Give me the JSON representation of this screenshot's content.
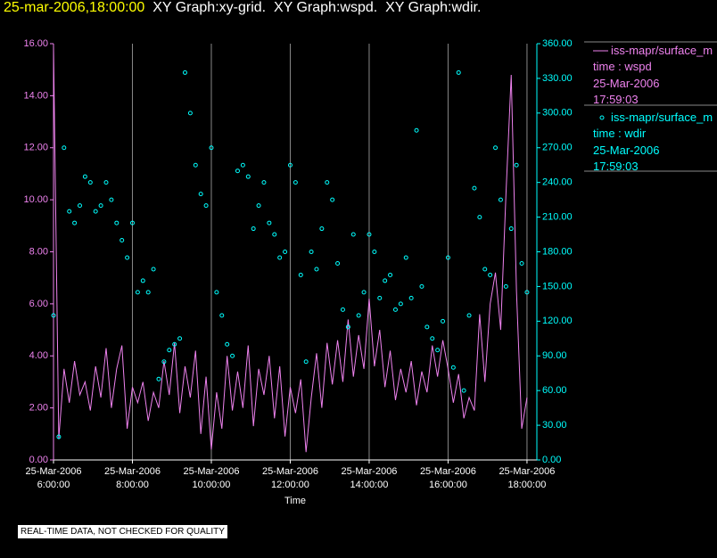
{
  "chart_data": {
    "type": "line",
    "title": "25-mar-2006,18:00:00",
    "subtitle": "XY Graph:xy-grid.  XY Graph:wspd.  XY Graph:wdir.",
    "x_label": "Time",
    "note": "REAL-TIME DATA, NOT CHECKED FOR QUALITY",
    "grid": "x",
    "xlim": [
      "2006-03-25T06:00:00",
      "2006-03-25T18:15:00"
    ],
    "xticks": [
      {
        "value": "2006-03-25T06:00:00",
        "label": "25-Mar-2006\n6:00:00"
      },
      {
        "value": "2006-03-25T08:00:00",
        "label": "25-Mar-2006\n8:00:00"
      },
      {
        "value": "2006-03-25T10:00:00",
        "label": "25-Mar-2006\n10:00:00"
      },
      {
        "value": "2006-03-25T12:00:00",
        "label": "25-Mar-2006\n12:00:00"
      },
      {
        "value": "2006-03-25T14:00:00",
        "label": "25-Mar-2006\n14:00:00"
      },
      {
        "value": "2006-03-25T16:00:00",
        "label": "25-Mar-2006\n16:00:00"
      },
      {
        "value": "2006-03-25T18:00:00",
        "label": "25-Mar-2006\n18:00:00"
      }
    ],
    "ylim": [
      0,
      16
    ],
    "yticks": [
      {
        "value": 0,
        "label": "0.00"
      },
      {
        "value": 2,
        "label": "2.00"
      },
      {
        "value": 4,
        "label": "4.00"
      },
      {
        "value": 6,
        "label": "6.00"
      },
      {
        "value": 8,
        "label": "8.00"
      },
      {
        "value": 10,
        "label": "10.00"
      },
      {
        "value": 12,
        "label": "12.00"
      },
      {
        "value": 14,
        "label": "14.00"
      },
      {
        "value": 16,
        "label": "16.00"
      }
    ],
    "y2lim": [
      0,
      360
    ],
    "y2ticks": [
      {
        "value": 0,
        "label": "0.00"
      },
      {
        "value": 30,
        "label": "30.00"
      },
      {
        "value": 60,
        "label": "60.00"
      },
      {
        "value": 90,
        "label": "90.00"
      },
      {
        "value": 120,
        "label": "120.00"
      },
      {
        "value": 150,
        "label": "150.00"
      },
      {
        "value": 180,
        "label": "180.00"
      },
      {
        "value": 210,
        "label": "210.00"
      },
      {
        "value": 240,
        "label": "240.00"
      },
      {
        "value": 270,
        "label": "270.00"
      },
      {
        "value": 300,
        "label": "300.00"
      },
      {
        "value": 330,
        "label": "330.00"
      },
      {
        "value": 360,
        "label": "360.00"
      }
    ],
    "x": [
      "2006-03-25T06:00:00",
      "2006-03-25T06:08:00",
      "2006-03-25T06:16:00",
      "2006-03-25T06:24:00",
      "2006-03-25T06:32:00",
      "2006-03-25T06:40:00",
      "2006-03-25T06:48:00",
      "2006-03-25T06:56:00",
      "2006-03-25T07:04:00",
      "2006-03-25T07:12:00",
      "2006-03-25T07:20:00",
      "2006-03-25T07:28:00",
      "2006-03-25T07:36:00",
      "2006-03-25T07:44:00",
      "2006-03-25T07:52:00",
      "2006-03-25T08:00:00",
      "2006-03-25T08:08:00",
      "2006-03-25T08:16:00",
      "2006-03-25T08:24:00",
      "2006-03-25T08:32:00",
      "2006-03-25T08:40:00",
      "2006-03-25T08:48:00",
      "2006-03-25T08:56:00",
      "2006-03-25T09:04:00",
      "2006-03-25T09:12:00",
      "2006-03-25T09:20:00",
      "2006-03-25T09:28:00",
      "2006-03-25T09:36:00",
      "2006-03-25T09:44:00",
      "2006-03-25T09:52:00",
      "2006-03-25T10:00:00",
      "2006-03-25T10:08:00",
      "2006-03-25T10:16:00",
      "2006-03-25T10:24:00",
      "2006-03-25T10:32:00",
      "2006-03-25T10:40:00",
      "2006-03-25T10:48:00",
      "2006-03-25T10:56:00",
      "2006-03-25T11:04:00",
      "2006-03-25T11:12:00",
      "2006-03-25T11:20:00",
      "2006-03-25T11:28:00",
      "2006-03-25T11:36:00",
      "2006-03-25T11:44:00",
      "2006-03-25T11:52:00",
      "2006-03-25T12:00:00",
      "2006-03-25T12:08:00",
      "2006-03-25T12:16:00",
      "2006-03-25T12:24:00",
      "2006-03-25T12:32:00",
      "2006-03-25T12:40:00",
      "2006-03-25T12:48:00",
      "2006-03-25T12:56:00",
      "2006-03-25T13:04:00",
      "2006-03-25T13:12:00",
      "2006-03-25T13:20:00",
      "2006-03-25T13:28:00",
      "2006-03-25T13:36:00",
      "2006-03-25T13:44:00",
      "2006-03-25T13:52:00",
      "2006-03-25T14:00:00",
      "2006-03-25T14:08:00",
      "2006-03-25T14:16:00",
      "2006-03-25T14:24:00",
      "2006-03-25T14:32:00",
      "2006-03-25T14:40:00",
      "2006-03-25T14:48:00",
      "2006-03-25T14:56:00",
      "2006-03-25T15:04:00",
      "2006-03-25T15:12:00",
      "2006-03-25T15:20:00",
      "2006-03-25T15:28:00",
      "2006-03-25T15:36:00",
      "2006-03-25T15:44:00",
      "2006-03-25T15:52:00",
      "2006-03-25T16:00:00",
      "2006-03-25T16:08:00",
      "2006-03-25T16:16:00",
      "2006-03-25T16:24:00",
      "2006-03-25T16:32:00",
      "2006-03-25T16:40:00",
      "2006-03-25T16:48:00",
      "2006-03-25T16:56:00",
      "2006-03-25T17:04:00",
      "2006-03-25T17:12:00",
      "2006-03-25T17:20:00",
      "2006-03-25T17:28:00",
      "2006-03-25T17:36:00",
      "2006-03-25T17:44:00",
      "2006-03-25T17:52:00",
      "2006-03-25T18:00:00"
    ],
    "series": [
      {
        "name": "iss-mapr/surface_m",
        "type": "line",
        "color": "#ee82ee",
        "legend_lines": [
          "time : wspd",
          "25-Mar-2006",
          "17:59:03"
        ],
        "values": [
          15.9,
          0.8,
          3.5,
          2.2,
          3.8,
          2.5,
          3.0,
          1.9,
          3.6,
          2.4,
          4.3,
          2.0,
          3.5,
          4.4,
          1.2,
          2.8,
          2.2,
          3.0,
          1.5,
          2.6,
          2.0,
          3.8,
          2.5,
          4.5,
          1.8,
          3.6,
          2.4,
          4.2,
          1.0,
          3.2,
          0.4,
          2.6,
          1.2,
          4.0,
          1.9,
          3.4,
          2.0,
          4.4,
          1.3,
          3.5,
          2.5,
          4.0,
          1.6,
          3.6,
          0.9,
          2.8,
          1.8,
          3.1,
          0.3,
          2.4,
          4.1,
          2.0,
          4.5,
          2.9,
          4.6,
          3.0,
          5.4,
          3.2,
          4.8,
          3.5,
          6.2,
          3.6,
          5.0,
          2.8,
          4.2,
          2.3,
          3.5,
          2.6,
          3.8,
          2.1,
          3.4,
          2.6,
          4.4,
          3.2,
          4.6,
          3.5,
          2.2,
          3.3,
          1.6,
          2.4,
          1.9,
          5.6,
          3.0,
          6.0,
          7.2,
          5.0,
          10.2,
          14.8,
          6.5,
          1.2,
          2.4
        ]
      },
      {
        "name": "iss-mapr/surface_m",
        "type": "scatter",
        "axis": "y2",
        "color": "#00ffff",
        "legend_lines": [
          "time : wdir",
          "25-Mar-2006",
          "17:59:03"
        ],
        "values": [
          125,
          20,
          270,
          215,
          205,
          220,
          245,
          240,
          215,
          220,
          240,
          225,
          205,
          190,
          175,
          205,
          145,
          155,
          145,
          165,
          70,
          85,
          95,
          100,
          105,
          335,
          300,
          255,
          230,
          220,
          270,
          145,
          125,
          100,
          90,
          250,
          255,
          245,
          200,
          220,
          240,
          205,
          195,
          175,
          180,
          255,
          240,
          160,
          85,
          180,
          165,
          200,
          240,
          225,
          170,
          130,
          115,
          195,
          125,
          145,
          195,
          180,
          140,
          155,
          160,
          130,
          135,
          175,
          140,
          285,
          150,
          115,
          105,
          95,
          120,
          175,
          80,
          335,
          60,
          125,
          235,
          210,
          165,
          160,
          270,
          225,
          150,
          200,
          255,
          170,
          145
        ]
      }
    ]
  }
}
